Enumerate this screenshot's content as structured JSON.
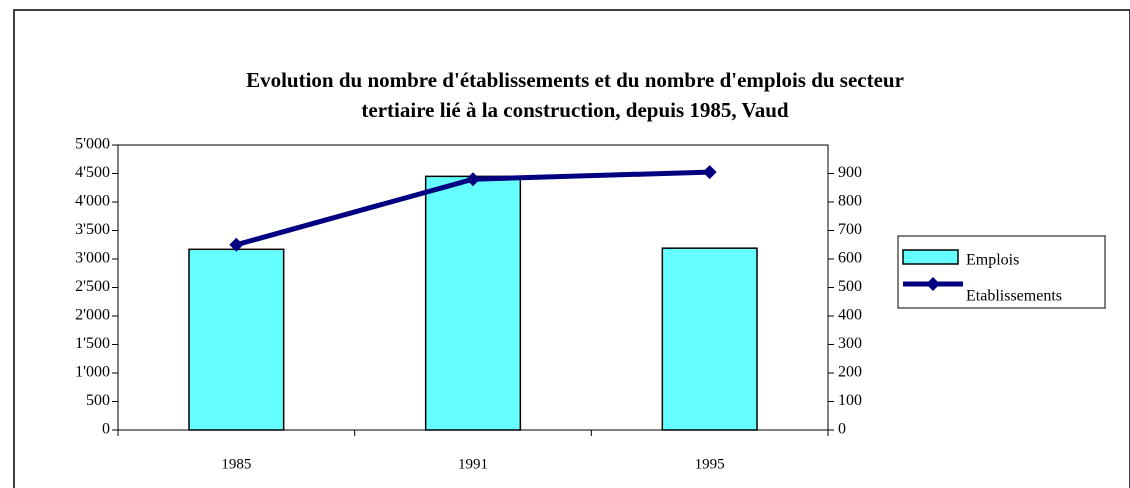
{
  "chart_data": {
    "type": "bar_line",
    "title": [
      "Evolution du nombre d'établissements et du nombre d'emplois du secteur",
      "tertiaire lié à la construction, depuis 1985, Vaud"
    ],
    "categories": [
      "1985",
      "1991",
      "1995"
    ],
    "series": [
      {
        "name": "Emplois",
        "type": "bar",
        "color": "#66ffff",
        "values": [
          3170,
          4450,
          3190
        ]
      },
      {
        "name": "Etablissements",
        "type": "line",
        "color": "#000080",
        "axis": "y2",
        "values": [
          650,
          880,
          905
        ]
      }
    ],
    "ylim": [
      0,
      5000
    ],
    "yticks": [
      0,
      500,
      {
        "value": 1000,
        "label": "1'000"
      },
      {
        "value": 1500,
        "label": "1'500"
      },
      {
        "value": 2000,
        "label": "2'000"
      },
      {
        "value": 2500,
        "label": "2'500"
      },
      {
        "value": 3000,
        "label": "3'000"
      },
      {
        "value": 3500,
        "label": "3'500"
      },
      {
        "value": 4000,
        "label": "4'000"
      },
      {
        "value": 4500,
        "label": "4'500"
      },
      {
        "value": 5000,
        "label": "5'000"
      }
    ],
    "y2lim": [
      0,
      1000
    ],
    "y2ticks": [
      0,
      100,
      200,
      300,
      400,
      500,
      600,
      700,
      800,
      900
    ],
    "legend": "right"
  }
}
